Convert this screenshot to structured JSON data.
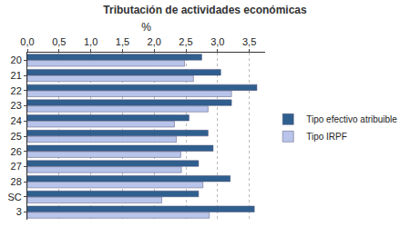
{
  "chart_data": {
    "type": "bar",
    "orientation": "horizontal",
    "title": "Tributación de actividades económicas",
    "x_label": "%",
    "categories": [
      "20",
      "21",
      "22",
      "23",
      "24",
      "25",
      "26",
      "27",
      "28",
      "SC",
      "3"
    ],
    "series": [
      {
        "name": "Tipo efectivo atribuible",
        "color": "#2f5f8f",
        "values": [
          2.75,
          3.05,
          3.62,
          3.22,
          2.55,
          2.85,
          2.93,
          2.7,
          3.2,
          2.7,
          3.58
        ]
      },
      {
        "name": "Tipo IRPF",
        "color": "#b8c4ea",
        "values": [
          2.48,
          2.62,
          3.22,
          2.85,
          2.32,
          2.35,
          2.42,
          2.43,
          2.77,
          2.12,
          2.87
        ]
      }
    ],
    "xlim": [
      0,
      3.75
    ],
    "xticks": [
      {
        "value": 0,
        "label": "0,0"
      },
      {
        "value": 0.5,
        "label": "0,5"
      },
      {
        "value": 1,
        "label": "1,0"
      },
      {
        "value": 1.5,
        "label": "1,5"
      },
      {
        "value": 2,
        "label": "2,0"
      },
      {
        "value": 2.5,
        "label": "2,5"
      },
      {
        "value": 3,
        "label": "3,0"
      },
      {
        "value": 3.5,
        "label": "3,5"
      }
    ],
    "grid": true,
    "legend": "right"
  }
}
